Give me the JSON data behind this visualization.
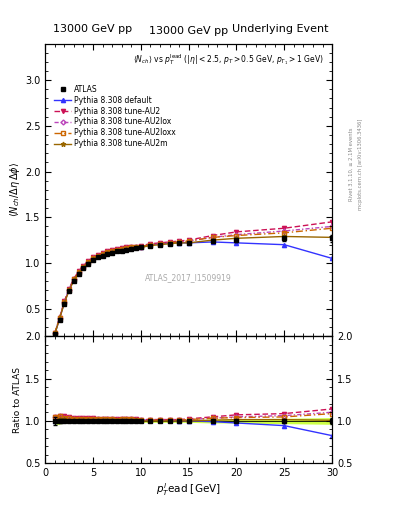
{
  "title_left": "13000 GeV pp",
  "title_right": "Underlying Event",
  "annotation": "ATLAS_2017_I1509919",
  "subtitle": "<N_{ch}> vs p_T^{lead} (|#eta| < 2.5, p_T > 0.5 GeV, p_{T_1} > 1 GeV)",
  "right_label": "Rivet 3.1.10, ≥ 2.1M events",
  "right_label2": "mcplots.cern.ch [arXiv:1306.3436]",
  "ylabel_main": "<N_{ch} / Delta eta delta phi>",
  "ylabel_ratio": "Ratio to ATLAS",
  "ylim_main": [
    0.2,
    3.4
  ],
  "ylim_ratio": [
    0.5,
    2.0
  ],
  "yticks_main": [
    0.5,
    1.0,
    1.5,
    2.0,
    2.5,
    3.0
  ],
  "yticks_ratio": [
    0.5,
    1.0,
    1.5,
    2.0
  ],
  "xlim": [
    0,
    30
  ],
  "xticks": [
    0,
    5,
    10,
    15,
    20,
    25,
    30
  ],
  "data_x": [
    1.0,
    1.5,
    2.0,
    2.5,
    3.0,
    3.5,
    4.0,
    4.5,
    5.0,
    5.5,
    6.0,
    6.5,
    7.0,
    7.5,
    8.0,
    8.5,
    9.0,
    9.5,
    10.0,
    11.0,
    12.0,
    13.0,
    14.0,
    15.0,
    17.5,
    20.0,
    25.0,
    30.0
  ],
  "atlas_y": [
    0.22,
    0.38,
    0.55,
    0.69,
    0.8,
    0.88,
    0.94,
    0.99,
    1.03,
    1.06,
    1.08,
    1.1,
    1.11,
    1.13,
    1.13,
    1.14,
    1.15,
    1.16,
    1.17,
    1.19,
    1.2,
    1.21,
    1.22,
    1.22,
    1.24,
    1.25,
    1.27,
    1.27
  ],
  "atlas_yerr": [
    0.01,
    0.01,
    0.01,
    0.01,
    0.01,
    0.01,
    0.01,
    0.01,
    0.01,
    0.01,
    0.01,
    0.01,
    0.01,
    0.01,
    0.01,
    0.01,
    0.01,
    0.01,
    0.01,
    0.01,
    0.01,
    0.01,
    0.01,
    0.01,
    0.02,
    0.02,
    0.03,
    0.04
  ],
  "default_y": [
    0.22,
    0.39,
    0.57,
    0.71,
    0.82,
    0.9,
    0.96,
    1.01,
    1.05,
    1.08,
    1.1,
    1.12,
    1.13,
    1.14,
    1.15,
    1.16,
    1.17,
    1.17,
    1.18,
    1.2,
    1.21,
    1.22,
    1.22,
    1.22,
    1.23,
    1.22,
    1.2,
    1.05
  ],
  "au2_y": [
    0.23,
    0.4,
    0.58,
    0.72,
    0.83,
    0.91,
    0.97,
    1.02,
    1.06,
    1.09,
    1.11,
    1.13,
    1.14,
    1.15,
    1.16,
    1.17,
    1.18,
    1.18,
    1.19,
    1.21,
    1.22,
    1.23,
    1.24,
    1.25,
    1.3,
    1.34,
    1.38,
    1.45
  ],
  "au2lox_y": [
    0.23,
    0.4,
    0.57,
    0.71,
    0.82,
    0.9,
    0.96,
    1.01,
    1.05,
    1.08,
    1.1,
    1.12,
    1.13,
    1.14,
    1.15,
    1.16,
    1.17,
    1.17,
    1.18,
    1.2,
    1.21,
    1.22,
    1.23,
    1.24,
    1.28,
    1.31,
    1.35,
    1.4
  ],
  "au2loxx_y": [
    0.23,
    0.4,
    0.57,
    0.71,
    0.82,
    0.9,
    0.96,
    1.01,
    1.05,
    1.08,
    1.1,
    1.12,
    1.13,
    1.14,
    1.15,
    1.16,
    1.17,
    1.17,
    1.18,
    1.2,
    1.21,
    1.22,
    1.23,
    1.24,
    1.28,
    1.3,
    1.33,
    1.38
  ],
  "au2m_y": [
    0.22,
    0.39,
    0.56,
    0.7,
    0.81,
    0.89,
    0.95,
    1.0,
    1.04,
    1.07,
    1.09,
    1.11,
    1.12,
    1.13,
    1.14,
    1.15,
    1.16,
    1.17,
    1.17,
    1.19,
    1.2,
    1.21,
    1.22,
    1.22,
    1.25,
    1.27,
    1.29,
    1.28
  ],
  "color_default": "#3333ff",
  "color_au2": "#cc1155",
  "color_au2lox": "#bb44bb",
  "color_au2loxx": "#cc6600",
  "color_au2m": "#996600",
  "color_atlas": "#000000",
  "color_band": "#ccff44"
}
